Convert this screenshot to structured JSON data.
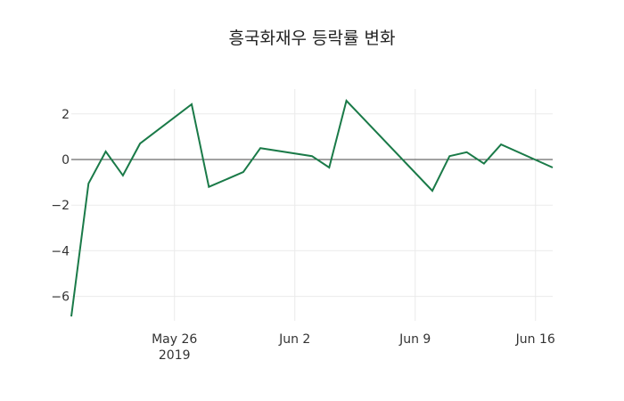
{
  "chart_data": {
    "type": "line",
    "title": "흥국화재우 등락률 변화",
    "xlabel": "",
    "ylabel": "",
    "x": [
      "2019-05-20",
      "2019-05-21",
      "2019-05-22",
      "2019-05-23",
      "2019-05-24",
      "2019-05-27",
      "2019-05-28",
      "2019-05-30",
      "2019-05-31",
      "2019-06-03",
      "2019-06-04",
      "2019-06-05",
      "2019-06-10",
      "2019-06-11",
      "2019-06-12",
      "2019-06-13",
      "2019-06-14",
      "2019-06-17"
    ],
    "series": [
      {
        "name": "등락률",
        "color": "#1a7a48",
        "values": [
          -6.88,
          -1.05,
          0.35,
          -0.7,
          0.7,
          2.42,
          -1.2,
          -0.55,
          0.5,
          0.15,
          -0.35,
          2.58,
          -1.37,
          0.15,
          0.32,
          -0.18,
          0.66,
          -0.35
        ]
      }
    ],
    "x_ticks": [
      {
        "date": "2019-05-26",
        "label": "May 26",
        "sublabel": "2019"
      },
      {
        "date": "2019-06-02",
        "label": "Jun 2",
        "sublabel": ""
      },
      {
        "date": "2019-06-09",
        "label": "Jun 9",
        "sublabel": ""
      },
      {
        "date": "2019-06-16",
        "label": "Jun 16",
        "sublabel": ""
      }
    ],
    "y_ticks": [
      2,
      0,
      -2,
      -4,
      -6
    ],
    "y_tick_labels": [
      "2",
      "0",
      "−2",
      "−4",
      "−6"
    ],
    "xlim": [
      "2019-05-20",
      "2019-06-17"
    ],
    "ylim": [
      -6.88,
      2.58
    ],
    "grid": true,
    "zero_line": true,
    "legend": "none"
  }
}
